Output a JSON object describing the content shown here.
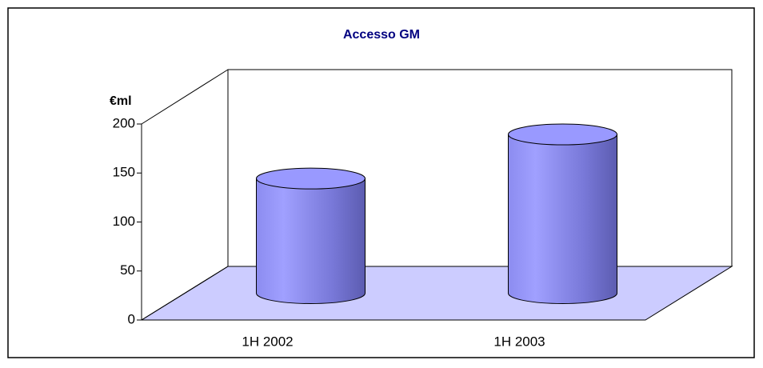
{
  "chart_data": {
    "type": "bar3d",
    "title": "Accesso GM",
    "y_label": "€ml",
    "categories": [
      "1H 2002",
      "1H 2003"
    ],
    "values": [
      117,
      162
    ],
    "color": "#9999ff",
    "ylim": [
      0,
      200
    ],
    "yticks": [
      0,
      50,
      100,
      150,
      200
    ],
    "grid": false
  }
}
